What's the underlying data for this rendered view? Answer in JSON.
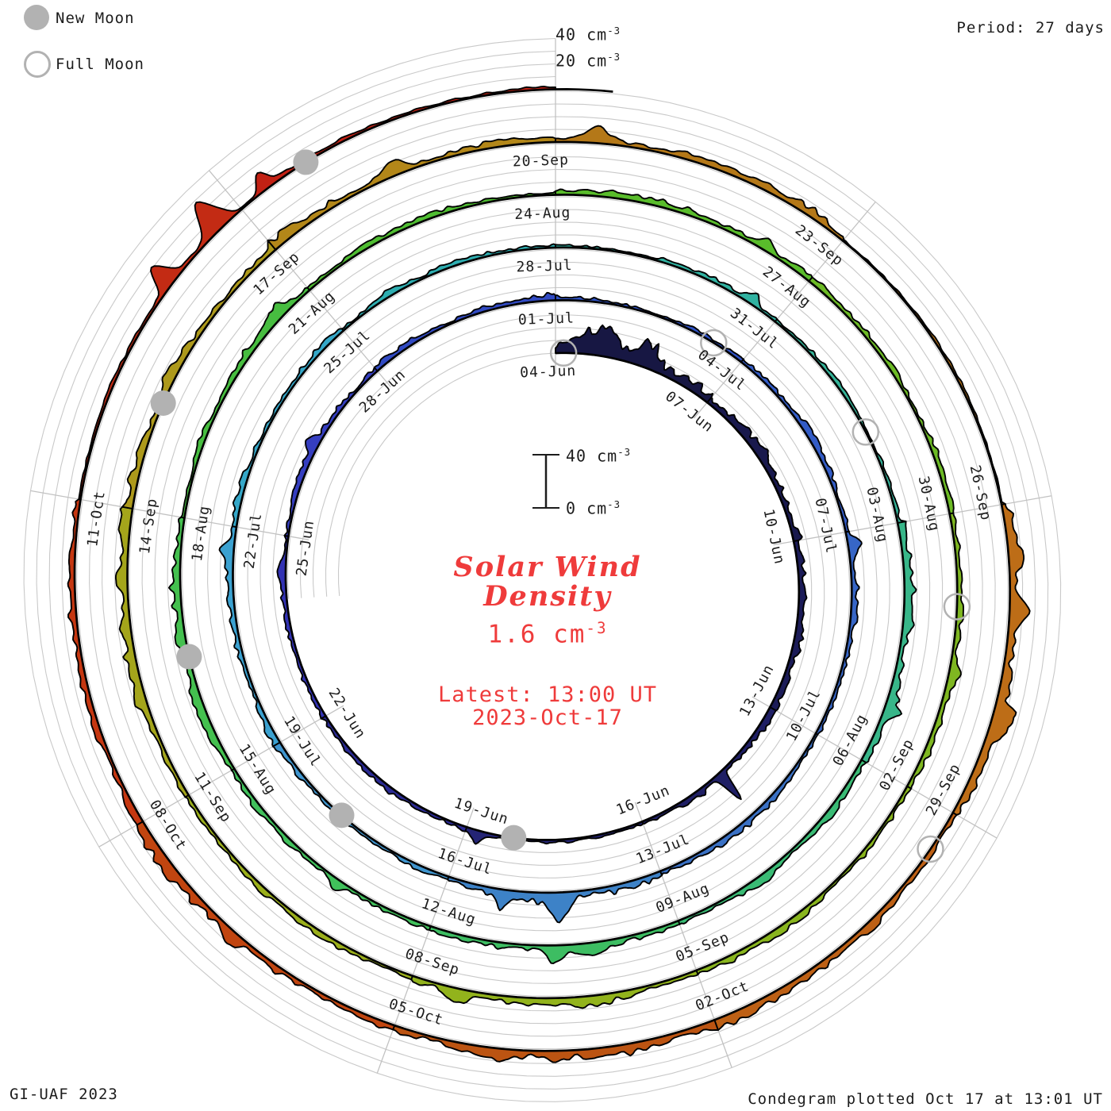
{
  "legend": {
    "new_moon": "New Moon",
    "full_moon": "Full Moon"
  },
  "header": {
    "period": "Period: 27 days"
  },
  "footer": {
    "left": "GI-UAF 2023",
    "right": "Condegram plotted Oct 17 at 13:01 UT"
  },
  "center": {
    "title1": "Solar Wind",
    "title2": "Density",
    "value": "1.6 cm",
    "latest": "Latest: 13:00 UT",
    "date": "2023-Oct-17",
    "sup": "-3"
  },
  "scale_bar": {
    "top": "40 cm",
    "bottom": "0 cm",
    "sup": "-3"
  },
  "outer_ticks": {
    "t40": "40 cm",
    "t20": "20 cm",
    "sup": "-3"
  },
  "colors": {
    "accent_text": "#ef3b3b",
    "moon": "#b2b2b2",
    "grid": "#c9c9c9",
    "spoke": "#c2c2c2",
    "ink": "#1c1c1c",
    "outline": "#000000"
  },
  "chart_data": {
    "type": "area",
    "projection": "radial_spiral_condegram",
    "title": "Solar Wind Density",
    "units": "cm^-3",
    "days_per_turn": 27,
    "start_date": "2023-06-04",
    "end": "2023-10-17 13:00 UT",
    "latest_value": 1.6,
    "radial_axis": {
      "min": 0,
      "max": 40,
      "grid_step": 10,
      "labeled_ticks": [
        20,
        40
      ]
    },
    "label_step_days": 3,
    "date_labels": [
      "04-Jun",
      "07-Jun",
      "10-Jun",
      "13-Jun",
      "16-Jun",
      "19-Jun",
      "22-Jun",
      "25-Jun",
      "28-Jun",
      "01-Jul",
      "04-Jul",
      "07-Jul",
      "10-Jul",
      "13-Jul",
      "16-Jul",
      "19-Jul",
      "22-Jul",
      "25-Jul",
      "28-Jul",
      "31-Jul",
      "03-Aug",
      "06-Aug",
      "09-Aug",
      "12-Aug",
      "15-Aug",
      "18-Aug",
      "21-Aug",
      "24-Aug",
      "27-Aug",
      "30-Aug",
      "02-Sep",
      "05-Sep",
      "08-Sep",
      "11-Sep",
      "14-Sep",
      "17-Sep",
      "20-Sep",
      "23-Sep",
      "26-Sep",
      "29-Sep",
      "02-Oct",
      "05-Oct",
      "08-Oct",
      "11-Oct"
    ],
    "segment_mean_density": [
      13,
      6.5,
      5.5,
      5,
      3.5,
      4,
      5,
      5,
      4.5,
      3,
      4.5,
      5,
      4.5,
      7.5,
      5,
      5.5,
      5,
      4,
      3.5,
      3,
      6.5,
      5,
      7.5,
      5,
      6.5,
      5,
      3.5,
      5.5,
      4,
      4.5,
      5.5,
      7.5,
      5,
      7.5,
      6.5,
      7,
      5.5,
      1.8,
      8.5,
      6.5,
      7.5,
      7.5,
      7,
      2.2,
      2.5
    ],
    "spikes": [
      {
        "d": 0.9,
        "a": 16,
        "w": 0.22
      },
      {
        "d": 1.6,
        "a": 9,
        "w": 0.15
      },
      {
        "d": 10.45,
        "a": 24,
        "w": 0.07
      },
      {
        "d": 14.8,
        "a": 7,
        "w": 0.1
      },
      {
        "d": 22.5,
        "a": 6,
        "w": 0.12
      },
      {
        "d": 33.2,
        "a": 6,
        "w": 0.1
      },
      {
        "d": 40.45,
        "a": 18,
        "w": 0.16
      },
      {
        "d": 41.2,
        "a": 8,
        "w": 0.1
      },
      {
        "d": 47.7,
        "a": 8,
        "w": 0.1
      },
      {
        "d": 56.6,
        "a": 7,
        "w": 0.1
      },
      {
        "d": 62.3,
        "a": 6,
        "w": 0.1
      },
      {
        "d": 67.5,
        "a": 9,
        "w": 0.12
      },
      {
        "d": 70.2,
        "a": 7,
        "w": 0.1
      },
      {
        "d": 77.6,
        "a": 6,
        "w": 0.1
      },
      {
        "d": 83.4,
        "a": 7,
        "w": 0.1
      },
      {
        "d": 88.7,
        "a": 7,
        "w": 0.1
      },
      {
        "d": 95.5,
        "a": 8,
        "w": 0.12
      },
      {
        "d": 101.3,
        "a": 7,
        "w": 0.12
      },
      {
        "d": 106.4,
        "a": 9,
        "w": 0.14
      },
      {
        "d": 108.4,
        "a": 10,
        "w": 0.12
      },
      {
        "d": 115.0,
        "a": 11,
        "w": 0.14
      },
      {
        "d": 116.0,
        "a": 9,
        "w": 0.1
      },
      {
        "d": 121.5,
        "a": 6,
        "w": 0.1
      },
      {
        "d": 124.7,
        "a": 7,
        "w": 0.1
      },
      {
        "d": 131.1,
        "a": 19,
        "w": 0.1
      },
      {
        "d": 131.75,
        "a": 26,
        "w": 0.12
      },
      {
        "d": 132.3,
        "a": 13,
        "w": 0.08
      }
    ],
    "moons": {
      "new": [
        {
          "date": "18-Jun",
          "day": 14.2
        },
        {
          "date": "17-Jul",
          "day": 43.7
        },
        {
          "date": "16-Aug",
          "day": 73.4
        },
        {
          "date": "15-Sep",
          "day": 103.1
        },
        {
          "date": "14-Oct",
          "day": 132.7
        }
      ],
      "full": [
        {
          "date": "04-Jun",
          "day": 0.15
        },
        {
          "date": "03-Jul",
          "day": 29.5
        },
        {
          "date": "01-Aug",
          "day": 58.8
        },
        {
          "date": "31-Aug",
          "day": 88.0
        },
        {
          "date": "29-Sep",
          "day": 117.4
        }
      ]
    },
    "color_stops": [
      [
        0,
        "#16163e"
      ],
      [
        6,
        "#1a1a52"
      ],
      [
        12,
        "#21216b"
      ],
      [
        15,
        "#26267e"
      ],
      [
        18,
        "#2d2da8"
      ],
      [
        21,
        "#3737bd"
      ],
      [
        24,
        "#3345c2"
      ],
      [
        27,
        "#2e4fc4"
      ],
      [
        33,
        "#3560c6"
      ],
      [
        39,
        "#3b77c4"
      ],
      [
        42,
        "#3f8cc9"
      ],
      [
        45,
        "#3e9ed2"
      ],
      [
        49,
        "#36a6cc"
      ],
      [
        52,
        "#2eadb4"
      ],
      [
        55,
        "#2fb2a2"
      ],
      [
        60,
        "#36b493"
      ],
      [
        64,
        "#3aba78"
      ],
      [
        67,
        "#3cbd63"
      ],
      [
        72,
        "#42c157"
      ],
      [
        76,
        "#46bd42"
      ],
      [
        80,
        "#50bd30"
      ],
      [
        84,
        "#5fbc28"
      ],
      [
        87,
        "#78b822"
      ],
      [
        90,
        "#85b61f"
      ],
      [
        94,
        "#90b41c"
      ],
      [
        98,
        "#9cae1b"
      ],
      [
        102,
        "#a8a01b"
      ],
      [
        105,
        "#b2921a"
      ],
      [
        108,
        "#b37c17"
      ],
      [
        111,
        "#b57419"
      ],
      [
        114,
        "#bd7418"
      ],
      [
        117,
        "#bd6516"
      ],
      [
        120,
        "#bc5a13"
      ],
      [
        123,
        "#bc4e10"
      ],
      [
        126,
        "#c53c10"
      ],
      [
        129,
        "#c43112"
      ],
      [
        132,
        "#c22415"
      ],
      [
        135.6,
        "#c11c12"
      ]
    ]
  }
}
